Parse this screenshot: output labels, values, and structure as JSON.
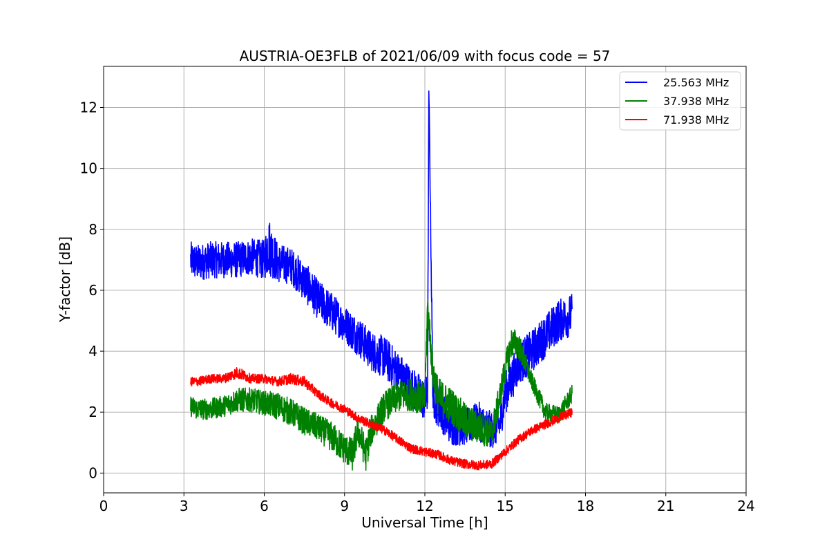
{
  "chart_data": {
    "type": "line",
    "title": "AUSTRIA-OE3FLB of 2021/06/09 with focus code = 57",
    "xlabel": "Universal Time [h]",
    "ylabel": "Y-factor [dB]",
    "xlim": [
      0,
      24
    ],
    "ylim": [
      -0.65,
      13.35
    ],
    "xticks": [
      0,
      3,
      6,
      9,
      12,
      15,
      18,
      21,
      24
    ],
    "yticks": [
      0,
      2,
      4,
      6,
      8,
      10,
      12
    ],
    "grid": true,
    "legend_position": "top-right",
    "series": [
      {
        "name": "25.563 MHz",
        "color": "#0000ff",
        "x": [
          3.25,
          3.5,
          4.0,
          4.5,
          5.0,
          5.5,
          6.0,
          6.15,
          6.5,
          7.0,
          7.5,
          8.0,
          8.5,
          9.0,
          9.5,
          10.0,
          10.5,
          11.0,
          11.5,
          12.0,
          12.1,
          12.15,
          12.3,
          12.5,
          13.0,
          13.5,
          14.0,
          14.5,
          14.8,
          15.0,
          15.5,
          16.0,
          16.5,
          17.0,
          17.5
        ],
        "values": [
          7.0,
          6.9,
          7.0,
          7.0,
          7.0,
          7.1,
          7.0,
          7.5,
          6.9,
          6.8,
          6.3,
          5.7,
          5.3,
          4.9,
          4.5,
          4.0,
          3.8,
          3.3,
          2.8,
          2.4,
          2.6,
          12.7,
          2.5,
          2.2,
          1.5,
          1.5,
          1.7,
          1.4,
          1.6,
          2.6,
          3.6,
          4.0,
          4.5,
          5.0,
          5.2
        ],
        "spread": [
          1.2,
          1.2,
          1.2,
          1.2,
          1.2,
          1.2,
          1.3,
          2.0,
          1.3,
          1.2,
          1.3,
          1.3,
          1.3,
          1.2,
          1.3,
          1.3,
          1.4,
          1.4,
          1.4,
          1.4,
          1.4,
          0.4,
          1.4,
          1.4,
          1.2,
          1.2,
          1.3,
          1.2,
          1.2,
          1.4,
          1.4,
          1.4,
          1.4,
          1.4,
          1.4
        ]
      },
      {
        "name": "37.938 MHz",
        "color": "#008000",
        "x": [
          3.25,
          3.5,
          4.0,
          4.5,
          5.0,
          5.5,
          6.0,
          6.5,
          7.0,
          7.5,
          8.0,
          8.5,
          9.0,
          9.3,
          9.5,
          9.8,
          10.0,
          10.5,
          11.0,
          11.5,
          12.0,
          12.1,
          12.3,
          12.5,
          13.0,
          13.5,
          14.0,
          14.5,
          14.8,
          15.0,
          15.25,
          15.5,
          16.0,
          16.5,
          17.0,
          17.5
        ],
        "values": [
          2.2,
          2.1,
          2.1,
          2.2,
          2.4,
          2.4,
          2.3,
          2.2,
          2.0,
          1.7,
          1.5,
          1.2,
          0.8,
          0.6,
          1.4,
          0.6,
          1.4,
          2.2,
          2.5,
          2.6,
          2.4,
          5.5,
          3.3,
          2.5,
          2.2,
          1.7,
          1.5,
          1.3,
          2.5,
          3.4,
          4.3,
          4.2,
          3.0,
          2.0,
          1.9,
          2.6
        ],
        "spread": [
          0.7,
          0.7,
          0.7,
          0.7,
          0.8,
          0.8,
          0.8,
          0.9,
          0.9,
          0.9,
          0.9,
          1.0,
          1.0,
          1.1,
          1.0,
          1.1,
          1.0,
          1.0,
          1.0,
          1.1,
          1.1,
          1.0,
          1.2,
          1.3,
          1.2,
          1.2,
          1.1,
          1.0,
          1.0,
          1.0,
          1.0,
          0.9,
          0.6,
          0.6,
          0.6,
          0.6
        ]
      },
      {
        "name": "71.938 MHz",
        "color": "#ff0000",
        "x": [
          3.25,
          3.5,
          4.0,
          4.5,
          5.0,
          5.5,
          6.0,
          6.5,
          7.0,
          7.5,
          8.0,
          8.5,
          9.0,
          9.5,
          10.0,
          10.5,
          11.0,
          11.5,
          12.0,
          12.5,
          13.0,
          13.5,
          14.0,
          14.5,
          15.0,
          15.5,
          16.0,
          16.5,
          17.0,
          17.5
        ],
        "values": [
          3.0,
          3.0,
          3.1,
          3.1,
          3.3,
          3.1,
          3.1,
          3.0,
          3.1,
          3.0,
          2.6,
          2.3,
          2.1,
          1.8,
          1.6,
          1.4,
          1.1,
          0.8,
          0.7,
          0.6,
          0.4,
          0.3,
          0.25,
          0.3,
          0.7,
          1.1,
          1.4,
          1.6,
          1.8,
          2.0
        ],
        "spread": [
          0.3,
          0.3,
          0.3,
          0.3,
          0.4,
          0.3,
          0.3,
          0.3,
          0.35,
          0.35,
          0.3,
          0.3,
          0.3,
          0.3,
          0.3,
          0.3,
          0.3,
          0.3,
          0.3,
          0.3,
          0.3,
          0.3,
          0.3,
          0.3,
          0.3,
          0.3,
          0.3,
          0.3,
          0.3,
          0.3
        ]
      }
    ]
  }
}
